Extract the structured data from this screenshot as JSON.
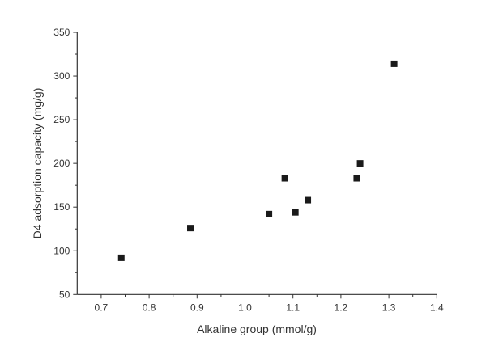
{
  "chart_data": {
    "type": "scatter",
    "title": "",
    "xlabel": "Alkaline group (mmol/g)",
    "ylabel": "D4 adsorption capacity (mg/g)",
    "xlim": [
      0.65,
      1.4
    ],
    "ylim": [
      50,
      350
    ],
    "xticks": [
      "0.7",
      "0.8",
      "0.9",
      "1.0",
      "1.1",
      "1.2",
      "1.3",
      "1.4"
    ],
    "yticks": [
      "50",
      "100",
      "150",
      "200",
      "250",
      "300",
      "350"
    ],
    "grid": false,
    "marker": "square",
    "marker_color": "#1a1a1a",
    "x": [
      0.742,
      0.886,
      1.05,
      1.083,
      1.105,
      1.131,
      1.233,
      1.24,
      1.311
    ],
    "y": [
      92,
      126,
      142,
      183,
      144,
      158,
      183,
      200,
      314
    ]
  }
}
